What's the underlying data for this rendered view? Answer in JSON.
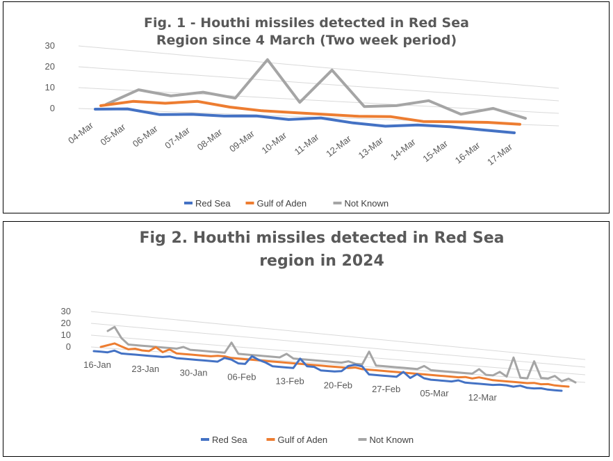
{
  "chart_data": [
    {
      "type": "line",
      "title_line1": "Fig. 1 - Houthi missiles detected in Red Sea",
      "title_line2": "Region since 4 March (Two week period)",
      "categories": [
        "04-Mar",
        "05-Mar",
        "06-Mar",
        "07-Mar",
        "08-Mar",
        "09-Mar",
        "10-Mar",
        "11-Mar",
        "12-Mar",
        "13-Mar",
        "14-Mar",
        "15-Mar",
        "16-Mar",
        "17-Mar"
      ],
      "ylim": [
        0,
        30
      ],
      "y_ticks": [
        0,
        10,
        20,
        30
      ],
      "grid": true,
      "legend_position": "bottom",
      "series": [
        {
          "name": "Red Sea",
          "color": "#4472C4",
          "values": [
            1,
            2,
            0,
            1,
            1,
            2,
            1,
            3,
            1,
            0,
            2,
            2,
            1,
            0
          ]
        },
        {
          "name": "Gulf of Aden",
          "color": "#ED7D31",
          "values": [
            1,
            4,
            4,
            6,
            4,
            3,
            3,
            3,
            3,
            4,
            2,
            3,
            4,
            4
          ]
        },
        {
          "name": "Not Known",
          "color": "#A5A5A5",
          "values": [
            0,
            8,
            6,
            9,
            7,
            30,
            7,
            28,
            7,
            9,
            14,
            6,
            12,
            6
          ]
        }
      ]
    },
    {
      "type": "line",
      "title_line1": "Fig 2. Houthi missiles detected in Red Sea",
      "title_line2": "region in 2024",
      "x_tick_labels": [
        "16-Jan",
        "23-Jan",
        "30-Jan",
        "06-Feb",
        "13-Feb",
        "20-Feb",
        "27-Feb",
        "05-Mar",
        "12-Mar"
      ],
      "x_start_label": "16-Jan",
      "points_per_week": 7,
      "ylim": [
        0,
        30
      ],
      "y_ticks": [
        0,
        10,
        20,
        30
      ],
      "grid": true,
      "legend_position": "bottom",
      "series": [
        {
          "name": "Red Sea",
          "color": "#4472C4",
          "values": [
            0,
            0,
            0,
            2,
            0,
            0,
            0,
            0,
            0,
            0,
            0,
            1,
            0,
            0,
            0,
            0,
            0,
            0,
            0,
            4,
            3,
            0,
            0,
            8,
            5,
            3,
            0,
            0,
            0,
            0,
            10,
            3,
            3,
            0,
            0,
            0,
            1,
            7,
            9,
            8,
            0,
            0,
            0,
            0,
            0,
            6,
            0,
            5,
            1,
            0,
            0,
            0,
            0,
            2,
            0,
            0,
            0,
            0,
            0,
            1,
            1,
            0,
            2,
            0,
            0,
            1,
            0,
            0,
            0
          ]
        },
        {
          "name": "Gulf of Aden",
          "color": "#ED7D31",
          "values": [
            0,
            2,
            4,
            2,
            0,
            1,
            0,
            0,
            4,
            0,
            3,
            0,
            0,
            0,
            0,
            0,
            0,
            1,
            1,
            0,
            0,
            0,
            0,
            0,
            0,
            0,
            0,
            0,
            0,
            0,
            0,
            0,
            0,
            0,
            0,
            0,
            0,
            1,
            0,
            0,
            0,
            0,
            0,
            0,
            0,
            0,
            0,
            0,
            0,
            0,
            0,
            0,
            0,
            1,
            0,
            2,
            1,
            0,
            0,
            0,
            0,
            0,
            0,
            1,
            0,
            1,
            0,
            0,
            0
          ]
        },
        {
          "name": "Not Known",
          "color": "#A5A5A5",
          "values": [
            10,
            14,
            5,
            0,
            0,
            0,
            0,
            0,
            0,
            0,
            0,
            2,
            0,
            0,
            0,
            0,
            0,
            0,
            10,
            0,
            0,
            0,
            0,
            0,
            0,
            0,
            4,
            0,
            0,
            0,
            0,
            0,
            0,
            0,
            0,
            2,
            0,
            0,
            14,
            0,
            0,
            0,
            0,
            0,
            0,
            0,
            4,
            0,
            0,
            0,
            0,
            0,
            0,
            0,
            6,
            0,
            0,
            5,
            0,
            24,
            0,
            0,
            22,
            2,
            2,
            6,
            0,
            4,
            0
          ]
        }
      ]
    }
  ]
}
